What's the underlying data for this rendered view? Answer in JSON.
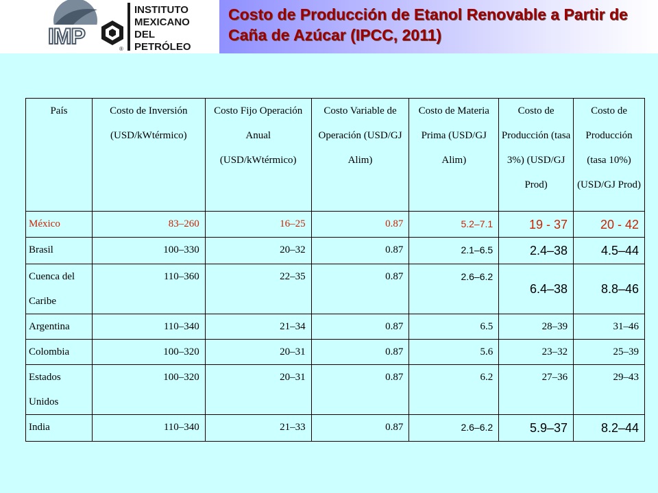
{
  "header": {
    "logo_text": "IMP",
    "logo_lines": [
      "INSTITUTO",
      "MEXICANO",
      "DEL",
      "PETRÓLEO"
    ],
    "title": "Costo de Producción de Etanol Renovable a Partir de Caña de Azúcar (IPCC, 2011)"
  },
  "table": {
    "headers": [
      "País",
      "Costo de Inversión (USD/kWtérmico)",
      "Costo Fijo Operación Anual (USD/kWtérmico)",
      "Costo Variable de Operación (USD/GJ Alim)",
      "Costo de Materia Prima (USD/GJ Alim)",
      "Costo de Producción (tasa 3%) (USD/GJ Prod)",
      "Costo de Producción (tasa 10%) (USD/GJ Prod)"
    ],
    "rows": [
      [
        "México",
        "83–260",
        "16–25",
        "0.87",
        "5.2–7.1",
        "19 - 37",
        "20 - 42"
      ],
      [
        "Brasil",
        "100–330",
        "20–32",
        "0.87",
        "2.1–6.5",
        "2.4–38",
        "4.5–44"
      ],
      [
        "Cuenca del Caribe",
        "110–360",
        "22–35",
        "0.87",
        "2.6–6.2",
        "6.4–38",
        "8.8–46"
      ],
      [
        "Argentina",
        "110–340",
        "21–34",
        "0.87",
        "6.5",
        "28–39",
        "31–46"
      ],
      [
        "Colombia",
        "100–320",
        "20–31",
        "0.87",
        "5.6",
        "23–32",
        "25–39"
      ],
      [
        "Estados Unidos",
        "100–320",
        "20–31",
        "0.87",
        "6.2",
        "27–36",
        "29–43"
      ],
      [
        "India",
        "110–340",
        "21–33",
        "0.87",
        "2.6–6.2",
        "5.9–37",
        "8.2–44"
      ]
    ]
  },
  "colors": {
    "background": "#ccffff",
    "title": "#9e0000",
    "highlight": "#cc2200"
  }
}
